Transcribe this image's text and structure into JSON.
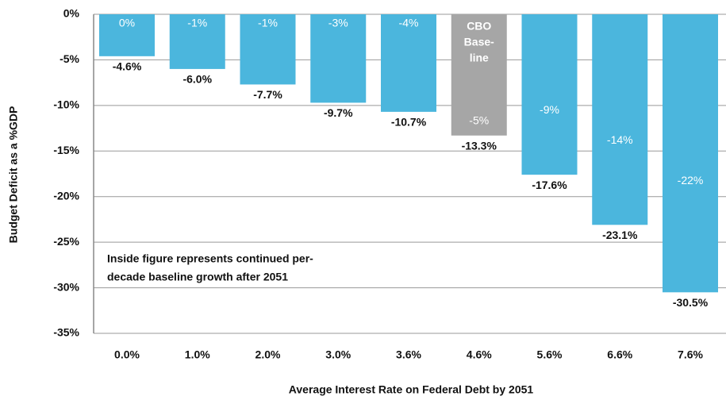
{
  "chart_data": {
    "type": "bar",
    "x_label": "Average Interest Rate on Federal Debt by 2051",
    "y_label": "Budget Deficit as a %GDP",
    "categories": [
      "0.0%",
      "1.0%",
      "2.0%",
      "3.0%",
      "3.6%",
      "4.6%",
      "5.6%",
      "6.6%",
      "7.6%"
    ],
    "values": [
      -4.6,
      -6.0,
      -7.7,
      -9.7,
      -10.7,
      -13.3,
      -17.6,
      -23.1,
      -30.5
    ],
    "value_labels": [
      "-4.6%",
      "-6.0%",
      "-7.7%",
      "-9.7%",
      "-10.7%",
      "-13.3%",
      "-17.6%",
      "-23.1%",
      "-30.5%"
    ],
    "inner_values": [
      0,
      -1,
      -1,
      -3,
      -4,
      -5,
      -9,
      -14,
      -22
    ],
    "inner_value_labels": [
      "0%",
      "-1%",
      "-1%",
      "-3%",
      "-4%",
      "-5%",
      "-9%",
      "-14%",
      "-22%"
    ],
    "colors": [
      "#4bb6dd",
      "#4bb6dd",
      "#4bb6dd",
      "#4bb6dd",
      "#4bb6dd",
      "#a6a6a6",
      "#4bb6dd",
      "#4bb6dd",
      "#4bb6dd"
    ],
    "baseline_label": [
      "CBO",
      "Base-",
      "line"
    ],
    "annotation": [
      "Inside figure represents continued per-",
      "decade baseline growth after 2051"
    ],
    "ylim": [
      0,
      -35
    ],
    "yticks": [
      {
        "value": 0,
        "label": "0%"
      },
      {
        "value": -5,
        "label": "-5%"
      },
      {
        "value": -10,
        "label": "-10%"
      },
      {
        "value": -15,
        "label": "-15%"
      },
      {
        "value": -20,
        "label": "-20%"
      },
      {
        "value": -25,
        "label": "-25%"
      },
      {
        "value": -30,
        "label": "-30%"
      },
      {
        "value": -35,
        "label": "-35%"
      }
    ],
    "grid": true
  }
}
